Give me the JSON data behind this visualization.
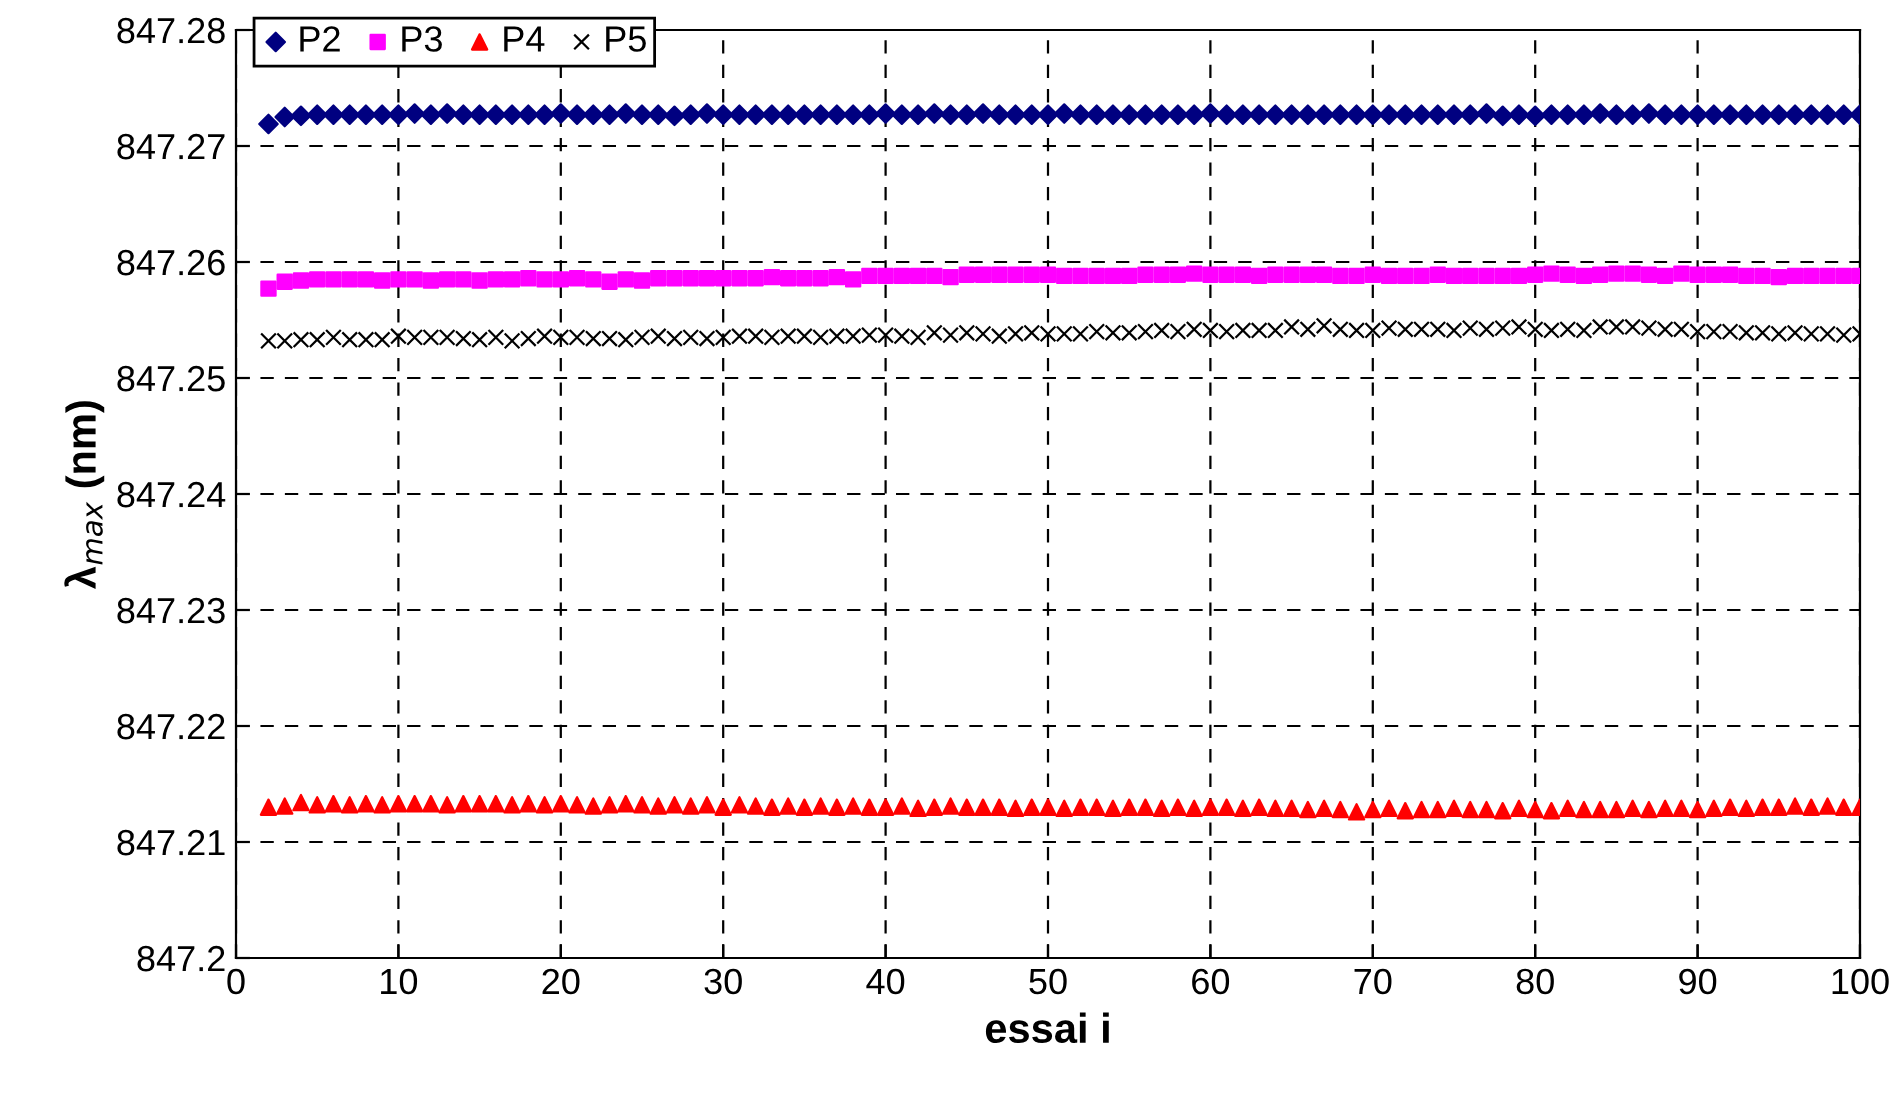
{
  "chart_data": {
    "type": "scatter",
    "xlabel": "essai i",
    "ylabel": "λ$_{max}$ (nm)",
    "x": [
      2,
      3,
      4,
      5,
      6,
      7,
      8,
      9,
      10,
      11,
      12,
      13,
      14,
      15,
      16,
      17,
      18,
      19,
      20,
      21,
      22,
      23,
      24,
      25,
      26,
      27,
      28,
      29,
      30,
      31,
      32,
      33,
      34,
      35,
      36,
      37,
      38,
      39,
      40,
      41,
      42,
      43,
      44,
      45,
      46,
      47,
      48,
      49,
      50,
      51,
      52,
      53,
      54,
      55,
      56,
      57,
      58,
      59,
      60,
      61,
      62,
      63,
      64,
      65,
      66,
      67,
      68,
      69,
      70,
      71,
      72,
      73,
      74,
      75,
      76,
      77,
      78,
      79,
      80,
      81,
      82,
      83,
      84,
      85,
      86,
      87,
      88,
      89,
      90,
      91,
      92,
      93,
      94,
      95,
      96,
      97,
      98,
      99,
      100
    ],
    "series": [
      {
        "name": "P2",
        "color": "#000080",
        "marker": "diamond",
        "values": [
          847.2719,
          847.2725,
          847.2726,
          847.2727,
          847.2727,
          847.2727,
          847.2727,
          847.2727,
          847.2727,
          847.2728,
          847.2727,
          847.2728,
          847.2727,
          847.2727,
          847.2727,
          847.2727,
          847.2727,
          847.2727,
          847.2728,
          847.2727,
          847.2727,
          847.2727,
          847.2728,
          847.2727,
          847.2727,
          847.2726,
          847.2727,
          847.2728,
          847.2727,
          847.2727,
          847.2727,
          847.2727,
          847.2727,
          847.2727,
          847.2727,
          847.2727,
          847.2727,
          847.2727,
          847.2728,
          847.2727,
          847.2727,
          847.2728,
          847.2727,
          847.2727,
          847.2728,
          847.2727,
          847.2727,
          847.2727,
          847.2727,
          847.2728,
          847.2727,
          847.2727,
          847.2727,
          847.2727,
          847.2727,
          847.2727,
          847.2727,
          847.2727,
          847.2728,
          847.2727,
          847.2727,
          847.2727,
          847.2727,
          847.2727,
          847.2727,
          847.2727,
          847.2727,
          847.2727,
          847.2727,
          847.2727,
          847.2727,
          847.2727,
          847.2727,
          847.2727,
          847.2727,
          847.2728,
          847.2726,
          847.2727,
          847.2726,
          847.2727,
          847.2727,
          847.2727,
          847.2728,
          847.2727,
          847.2727,
          847.2728,
          847.2727,
          847.2727,
          847.2727,
          847.2727,
          847.2727,
          847.2727,
          847.2727,
          847.2727,
          847.2727,
          847.2727,
          847.2727,
          847.2727,
          847.2727
        ]
      },
      {
        "name": "P3",
        "color": "#ff00ff",
        "marker": "square",
        "values": [
          847.2577,
          847.2583,
          847.2584,
          847.2585,
          847.2585,
          847.2585,
          847.2585,
          847.2584,
          847.2585,
          847.2585,
          847.2584,
          847.2585,
          847.2585,
          847.2584,
          847.2585,
          847.2585,
          847.2586,
          847.2585,
          847.2585,
          847.2586,
          847.2585,
          847.2583,
          847.2585,
          847.2584,
          847.2586,
          847.2586,
          847.2586,
          847.2586,
          847.2586,
          847.2586,
          847.2586,
          847.2587,
          847.2586,
          847.2586,
          847.2586,
          847.2587,
          847.2585,
          847.2588,
          847.2588,
          847.2588,
          847.2588,
          847.2588,
          847.2587,
          847.2589,
          847.2589,
          847.2589,
          847.2589,
          847.2589,
          847.2589,
          847.2588,
          847.2588,
          847.2588,
          847.2588,
          847.2588,
          847.2589,
          847.2589,
          847.2589,
          847.259,
          847.2589,
          847.2589,
          847.2589,
          847.2588,
          847.2589,
          847.2589,
          847.2589,
          847.2589,
          847.2588,
          847.2588,
          847.2589,
          847.2588,
          847.2588,
          847.2588,
          847.2589,
          847.2588,
          847.2588,
          847.2588,
          847.2588,
          847.2588,
          847.2589,
          847.259,
          847.2589,
          847.2588,
          847.2589,
          847.259,
          847.259,
          847.2589,
          847.2588,
          847.259,
          847.2589,
          847.2589,
          847.2589,
          847.2588,
          847.2588,
          847.2587,
          847.2588,
          847.2588,
          847.2588,
          847.2588,
          847.2588
        ]
      },
      {
        "name": "P4",
        "color": "#ff0000",
        "marker": "triangle",
        "values": [
          847.213,
          847.2131,
          847.2134,
          847.2132,
          847.2133,
          847.2132,
          847.2133,
          847.2132,
          847.2133,
          847.2133,
          847.2133,
          847.2132,
          847.2133,
          847.2133,
          847.2133,
          847.2132,
          847.2133,
          847.2132,
          847.2133,
          847.2132,
          847.2131,
          847.2132,
          847.2133,
          847.2132,
          847.2131,
          847.2132,
          847.2131,
          847.2132,
          847.213,
          847.2132,
          847.2131,
          847.213,
          847.2131,
          847.213,
          847.2131,
          847.213,
          847.2131,
          847.213,
          847.213,
          847.2131,
          847.2129,
          847.213,
          847.2131,
          847.213,
          847.213,
          847.213,
          847.2129,
          847.213,
          847.213,
          847.2129,
          847.213,
          847.213,
          847.2129,
          847.213,
          847.213,
          847.2129,
          847.213,
          847.2129,
          847.213,
          847.213,
          847.2129,
          847.213,
          847.2129,
          847.2129,
          847.2128,
          847.2129,
          847.2128,
          847.2126,
          847.2128,
          847.2129,
          847.2127,
          847.2128,
          847.2128,
          847.2129,
          847.2128,
          847.2128,
          847.2127,
          847.2129,
          847.2128,
          847.2127,
          847.2129,
          847.2128,
          847.2128,
          847.2128,
          847.2129,
          847.2128,
          847.2129,
          847.2129,
          847.2128,
          847.2129,
          847.213,
          847.2129,
          847.213,
          847.213,
          847.2131,
          847.213,
          847.2131,
          847.213,
          847.213
        ]
      },
      {
        "name": "P5",
        "color": "#000000",
        "marker": "cross",
        "values": [
          847.2532,
          847.2532,
          847.2533,
          847.2533,
          847.2535,
          847.2533,
          847.2533,
          847.2533,
          847.2536,
          847.2535,
          847.2535,
          847.2535,
          847.2534,
          847.2533,
          847.2535,
          847.2532,
          847.2534,
          847.2536,
          847.2535,
          847.2535,
          847.2534,
          847.2534,
          847.2533,
          847.2535,
          847.2536,
          847.2534,
          847.2535,
          847.2534,
          847.2535,
          847.2536,
          847.2536,
          847.2535,
          847.2536,
          847.2536,
          847.2535,
          847.2536,
          847.2536,
          847.2537,
          847.2537,
          847.2536,
          847.2535,
          847.2539,
          847.2537,
          847.2539,
          847.2538,
          847.2536,
          847.2538,
          847.2539,
          847.2538,
          847.2538,
          847.2538,
          847.254,
          847.2539,
          847.2539,
          847.254,
          847.2541,
          847.254,
          847.2542,
          847.2541,
          847.254,
          847.2541,
          847.2541,
          847.2541,
          847.2544,
          847.2542,
          847.2545,
          847.2542,
          847.2541,
          847.2541,
          847.2543,
          847.2542,
          847.2542,
          847.2542,
          847.2541,
          847.2543,
          847.2542,
          847.2543,
          847.2544,
          847.2542,
          847.2541,
          847.2542,
          847.2541,
          847.2544,
          847.2544,
          847.2544,
          847.2543,
          847.2542,
          847.2542,
          847.254,
          847.254,
          847.254,
          847.2539,
          847.2539,
          847.2538,
          847.2539,
          847.2538,
          847.2538,
          847.2537,
          847.2538
        ]
      }
    ],
    "xlim": [
      0,
      100
    ],
    "xticks": [
      0,
      10,
      20,
      30,
      40,
      50,
      60,
      70,
      80,
      90,
      100
    ],
    "ylim": [
      847.2,
      847.28
    ],
    "yticks": [
      847.2,
      847.21,
      847.22,
      847.23,
      847.24,
      847.25,
      847.26,
      847.27,
      847.28
    ],
    "grid": true,
    "legend": "top left"
  }
}
